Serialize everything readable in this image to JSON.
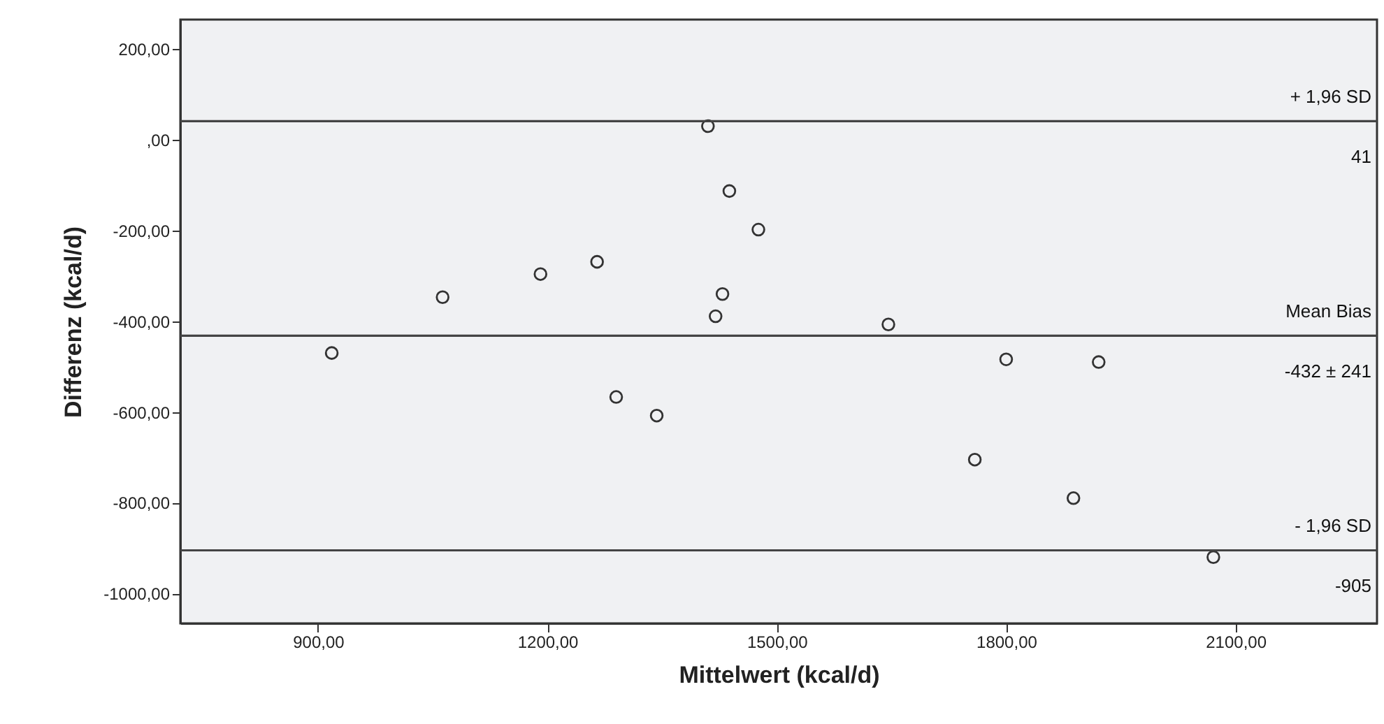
{
  "chart_data": {
    "type": "scatter",
    "xlabel": "Mittelwert (kcal/d)",
    "ylabel": "Differenz (kcal/d)",
    "x": [
      918,
      1063,
      1191,
      1265,
      1290,
      1343,
      1410,
      1438,
      1476,
      1429,
      1420,
      1646,
      1800,
      1921,
      1759,
      1888,
      2071
    ],
    "series": [
      {
        "color": "#333333",
        "values": [
          -470,
          -347,
          -296,
          -269,
          -567,
          -608,
          30,
          -113,
          -198,
          -340,
          -389,
          -407,
          -484,
          -490,
          -705,
          -790,
          -920
        ]
      }
    ],
    "marker": "circle",
    "grid": false,
    "xlim": [
      720,
      2285
    ],
    "ylim": [
      -1066,
      265
    ],
    "xticks": [
      {
        "value": 900,
        "label": "900,00"
      },
      {
        "value": 1200,
        "label": "1200,00"
      },
      {
        "value": 1500,
        "label": "1500,00"
      },
      {
        "value": 1800,
        "label": "1800,00"
      },
      {
        "value": 2100,
        "label": "2100,00"
      }
    ],
    "yticks": [
      {
        "value": 200,
        "label": "200,00"
      },
      {
        "value": 0,
        "label": ",00"
      },
      {
        "value": -200,
        "label": "-200,00"
      },
      {
        "value": -400,
        "label": "-400,00"
      },
      {
        "value": -600,
        "label": "-600,00"
      },
      {
        "value": -800,
        "label": "-800,00"
      },
      {
        "value": -1000,
        "label": "-1000,00"
      }
    ],
    "ref_lines": [
      {
        "axis": "y",
        "value": 41,
        "label": "+ 1,96 SD",
        "color": "#444444"
      },
      {
        "axis": "y",
        "value": -432,
        "label": "Mean Bias",
        "color": "#444444"
      },
      {
        "axis": "y",
        "value": -905,
        "label": "- 1,96 SD",
        "color": "#444444"
      }
    ],
    "annotations": [
      {
        "text": "41",
        "y": 41
      },
      {
        "text": "-432 ± 241",
        "y": -432
      },
      {
        "text": "-905",
        "y": -905
      }
    ]
  }
}
